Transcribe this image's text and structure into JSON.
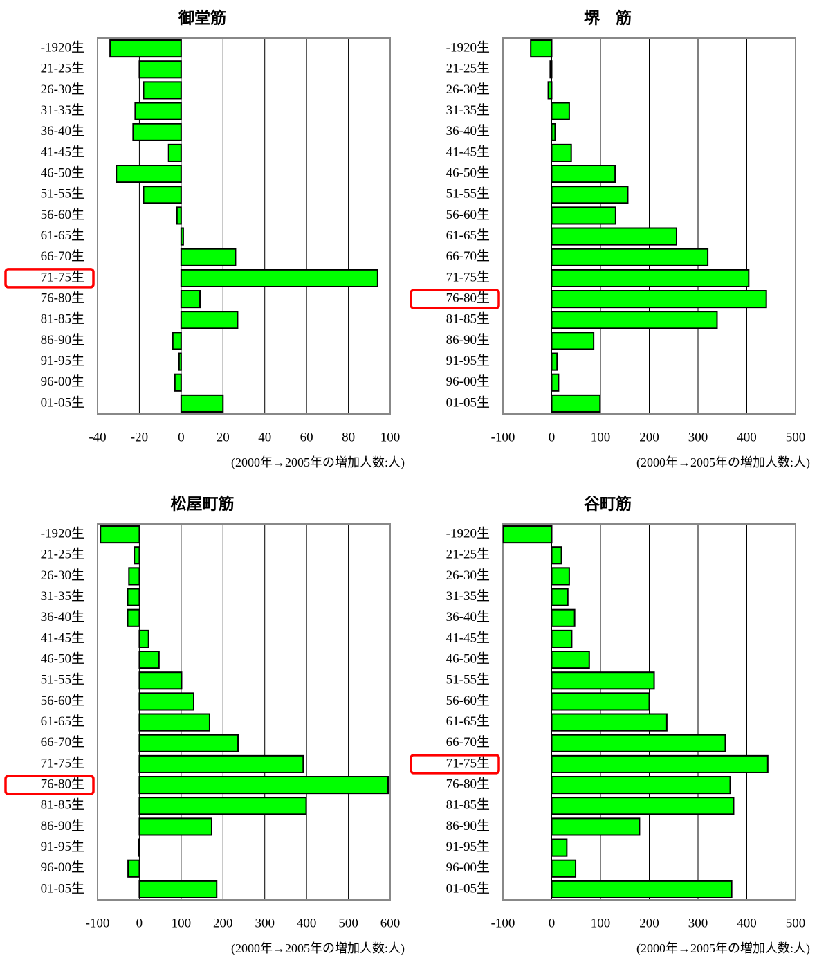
{
  "chart_data": [
    {
      "type": "barh",
      "title": "御堂筋",
      "xlabel": "(2000年→2005年の増加人数:人)",
      "categories": [
        "-1920生",
        "21-25生",
        "26-30生",
        "31-35生",
        "36-40生",
        "41-45生",
        "46-50生",
        "51-55生",
        "56-60生",
        "61-65生",
        "66-70生",
        "71-75生",
        "76-80生",
        "81-85生",
        "86-90生",
        "91-95生",
        "96-00生",
        "01-05生"
      ],
      "values": [
        -34,
        -20,
        -18,
        -22,
        -23,
        -6,
        -31,
        -18,
        -2,
        1,
        26,
        94,
        9,
        27,
        -4,
        -1,
        -3,
        20
      ],
      "color": "#00ff00",
      "xlim": [
        -40,
        100
      ],
      "xticks": [
        -40,
        -20,
        0,
        20,
        40,
        60,
        80,
        100
      ],
      "grid": true,
      "highlight": 11
    },
    {
      "type": "barh",
      "title": "堺　筋",
      "xlabel": "(2000年→2005年の増加人数:人)",
      "categories": [
        "-1920生",
        "21-25生",
        "26-30生",
        "31-35生",
        "36-40生",
        "41-45生",
        "46-50生",
        "51-55生",
        "56-60生",
        "61-65生",
        "66-70生",
        "71-75生",
        "76-80生",
        "81-85生",
        "86-90生",
        "91-95生",
        "96-00生",
        "01-05生"
      ],
      "values": [
        -43,
        -3,
        -7,
        36,
        7,
        40,
        130,
        156,
        131,
        256,
        320,
        404,
        440,
        339,
        86,
        11,
        14,
        99
      ],
      "color": "#00ff00",
      "xlim": [
        -100,
        500
      ],
      "xticks": [
        -100,
        0,
        100,
        200,
        300,
        400,
        500
      ],
      "grid": true,
      "highlight": 12
    },
    {
      "type": "barh",
      "title": "松屋町筋",
      "xlabel": "(2000年→2005年の増加人数:人)",
      "categories": [
        "-1920生",
        "21-25生",
        "26-30生",
        "31-35生",
        "36-40生",
        "41-45生",
        "46-50生",
        "51-55生",
        "56-60生",
        "61-65生",
        "66-70生",
        "71-75生",
        "76-80生",
        "81-85生",
        "86-90生",
        "91-95生",
        "96-00生",
        "01-05生"
      ],
      "values": [
        -93,
        -12,
        -25,
        -28,
        -28,
        22,
        47,
        101,
        130,
        168,
        236,
        392,
        595,
        399,
        173,
        -1,
        -27,
        185
      ],
      "color": "#00ff00",
      "xlim": [
        -100,
        600
      ],
      "xticks": [
        -100,
        0,
        100,
        200,
        300,
        400,
        500,
        600
      ],
      "grid": true,
      "highlight": 12
    },
    {
      "type": "barh",
      "title": "谷町筋",
      "xlabel": "(2000年→2005年の増加人数:人)",
      "categories": [
        "-1920生",
        "21-25生",
        "26-30生",
        "31-35生",
        "36-40生",
        "41-45生",
        "46-50生",
        "51-55生",
        "56-60生",
        "61-65生",
        "66-70生",
        "71-75生",
        "76-80生",
        "81-85生",
        "86-90生",
        "91-95生",
        "96-00生",
        "01-05生"
      ],
      "values": [
        -99,
        20,
        36,
        33,
        47,
        41,
        77,
        210,
        200,
        236,
        356,
        443,
        366,
        373,
        180,
        31,
        49,
        369
      ],
      "color": "#00ff00",
      "xlim": [
        -100,
        500
      ],
      "xticks": [
        -100,
        0,
        100,
        200,
        300,
        400,
        500
      ],
      "grid": true,
      "highlight": 11
    }
  ]
}
